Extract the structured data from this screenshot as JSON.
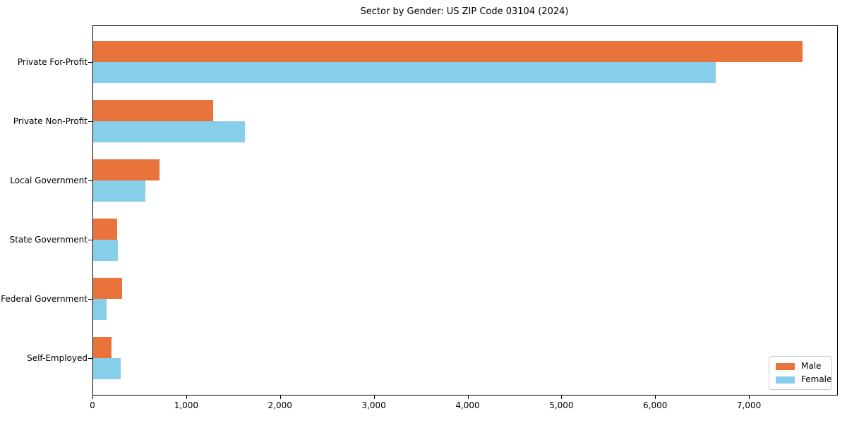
{
  "chart_data": {
    "type": "bar",
    "orientation": "horizontal",
    "title": "Sector by Gender: US ZIP Code 03104 (2024)",
    "categories": [
      "Private For-Profit",
      "Private Non-Profit",
      "Local Government",
      "State Government",
      "Federal Government",
      "Self-Employed"
    ],
    "series": [
      {
        "name": "Male",
        "color": "#E8743B",
        "values": [
          7560,
          1280,
          705,
          255,
          310,
          195
        ]
      },
      {
        "name": "Female",
        "color": "#87CEEB",
        "values": [
          6640,
          1615,
          560,
          260,
          140,
          290
        ]
      }
    ],
    "xlabel": "",
    "ylabel": "",
    "xlim": [
      0,
      7940
    ],
    "x_ticks": [
      0,
      1000,
      2000,
      3000,
      4000,
      5000,
      6000,
      7000
    ],
    "x_tick_labels": [
      "0",
      "1,000",
      "2,000",
      "3,000",
      "4,000",
      "5,000",
      "6,000",
      "7,000"
    ],
    "grid": false,
    "legend_position": "lower right",
    "plot_border_color": "#000000",
    "background_color": "#ffffff"
  }
}
